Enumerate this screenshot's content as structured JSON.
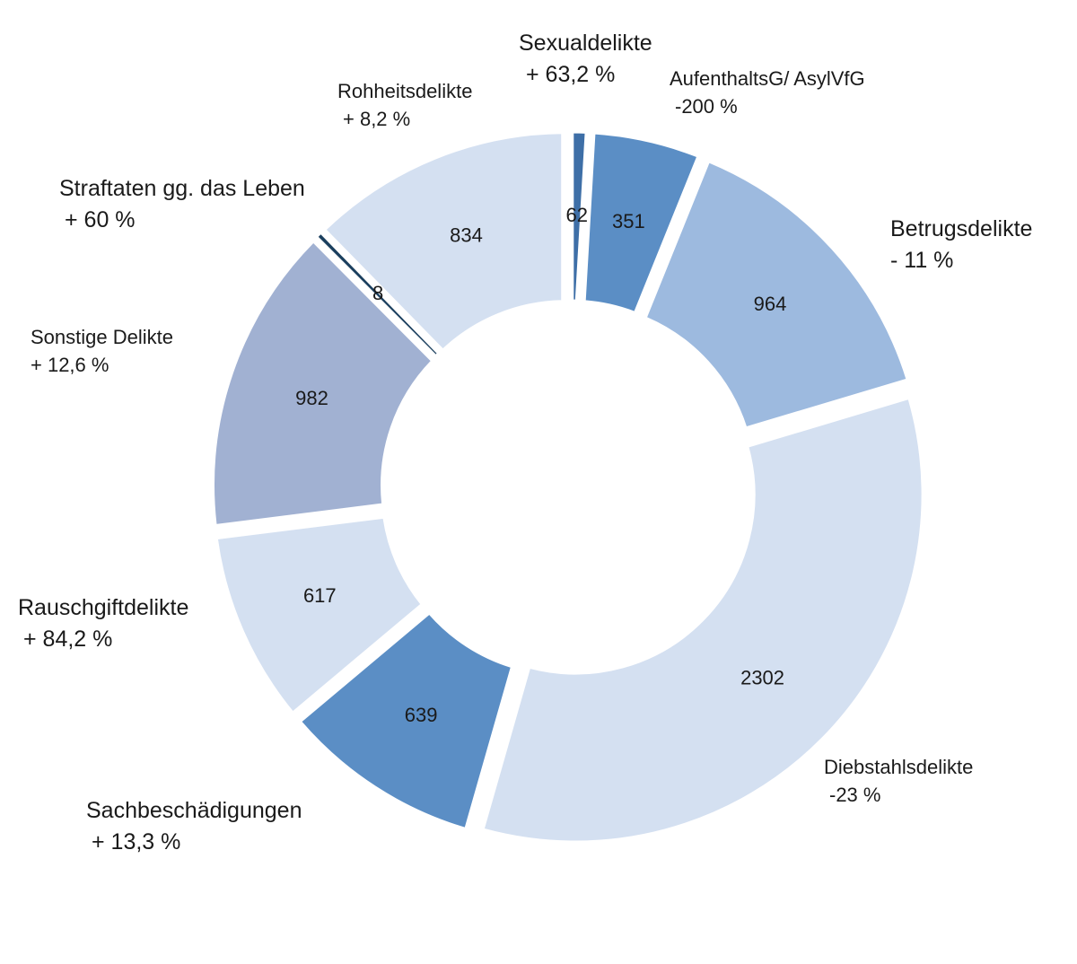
{
  "chart_data": {
    "type": "pie",
    "donut": true,
    "start_angle_deg": 0,
    "direction": "clockwise",
    "slices": [
      {
        "category": "Sexualdelikte",
        "value": 62,
        "value_label": "62",
        "change": "+ 63,2 %",
        "color": "#3e6fa7"
      },
      {
        "category": "AufenthaltsG/ AsylVfG",
        "value": 351,
        "value_label": "351",
        "change": "-200 %",
        "color": "#5b8ec5"
      },
      {
        "category": "Betrugsdelikte",
        "value": 964,
        "value_label": "964",
        "change": "- 11 %",
        "color": "#9dbadf"
      },
      {
        "category": "Diebstahlsdelikte",
        "value": 2302,
        "value_label": "2302",
        "change": "-23 %",
        "color": "#d4e0f1"
      },
      {
        "category": "Sachbeschädigungen",
        "value": 639,
        "value_label": "639",
        "change": "+ 13,3 %",
        "color": "#5b8ec5"
      },
      {
        "category": "Rauschgiftdelikte",
        "value": 617,
        "value_label": "617",
        "change": "+ 84,2 %",
        "color": "#d4e0f1"
      },
      {
        "category": "Sonstige Delikte",
        "value": 982,
        "value_label": "982",
        "change": "+ 12,6 %",
        "color": "#a1b1d2"
      },
      {
        "category": "Straftaten gg. das Leben",
        "value": 8,
        "value_label": "8",
        "change": "+ 60 %",
        "color": "#1b3f5e"
      },
      {
        "category": "Rohheitsdelikte",
        "value": 834,
        "value_label": "834",
        "change": "+ 8,2 %",
        "color": "#d4e0f1"
      }
    ],
    "legend": "none",
    "grid": false
  }
}
